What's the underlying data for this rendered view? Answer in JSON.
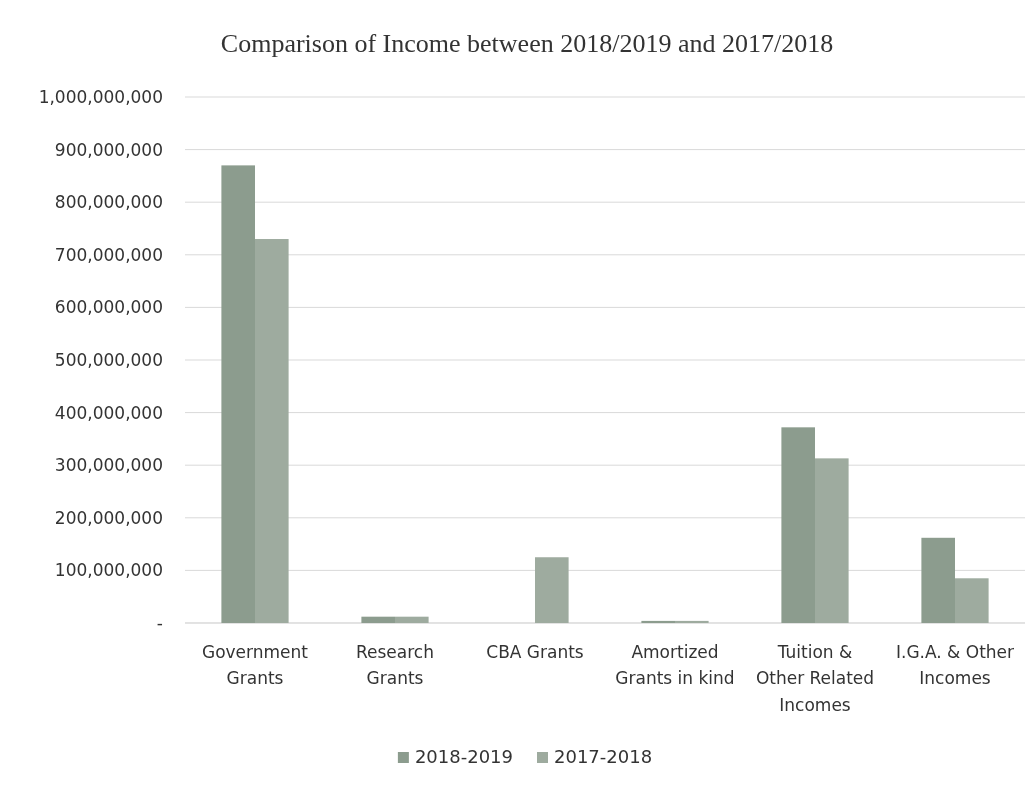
{
  "chart_data": {
    "type": "bar",
    "title": "Comparison of Income between 2018/2019 and 2017/2018",
    "categories": [
      "Government Grants",
      "Research Grants",
      "CBA Grants",
      "Amortized Grants in kind",
      "Tuition & Other Related Incomes",
      "I.G.A. & Other Incomes"
    ],
    "series": [
      {
        "name": "2018-2019",
        "color": "#8c9c8e",
        "values": [
          870000000,
          12000000,
          null,
          4000000,
          372000000,
          162000000
        ]
      },
      {
        "name": "2017-2018",
        "color": "#9eab9f",
        "values": [
          730000000,
          12000000,
          125000000,
          4000000,
          313000000,
          85000000
        ]
      }
    ],
    "ylim": [
      0,
      1000000000
    ],
    "yticks": [
      {
        "value": 0,
        "label": "-"
      },
      {
        "value": 100000000,
        "label": "100,000,000"
      },
      {
        "value": 200000000,
        "label": "200,000,000"
      },
      {
        "value": 300000000,
        "label": "300,000,000"
      },
      {
        "value": 400000000,
        "label": "400,000,000"
      },
      {
        "value": 500000000,
        "label": "500,000,000"
      },
      {
        "value": 600000000,
        "label": "600,000,000"
      },
      {
        "value": 700000000,
        "label": "700,000,000"
      },
      {
        "value": 800000000,
        "label": "800,000,000"
      },
      {
        "value": 900000000,
        "label": "900,000,000"
      },
      {
        "value": 1000000000,
        "label": "1,000,000,000"
      }
    ],
    "grid": "y",
    "legend": "bottom"
  }
}
